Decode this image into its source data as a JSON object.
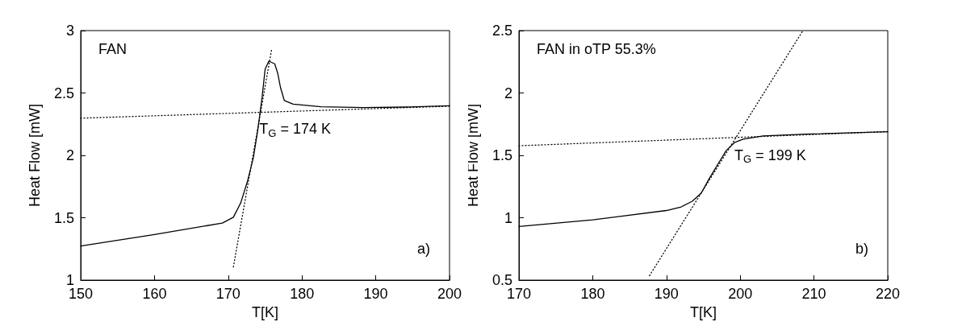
{
  "chart_data": [
    {
      "type": "line",
      "xlabel": "T[K]",
      "ylabel": "Heat Flow [mW]",
      "xlim": [
        150,
        200
      ],
      "xticks": [
        150,
        160,
        170,
        180,
        190,
        200
      ],
      "ylim": [
        1,
        3
      ],
      "yticks": [
        1,
        1.5,
        2,
        2.5,
        3
      ],
      "grid": false,
      "marker": "none",
      "annotations": [
        "FAN",
        "a)",
        {
          "text": "T$_{G}$ = 174 K",
          "x": 174,
          "y": 2.35
        }
      ],
      "series": [
        {
          "color": "#000000",
          "line_style": "solid",
          "x": [
            150,
            160,
            169.2,
            170.7,
            171.7,
            172.6,
            173.4,
            174.0,
            174.6,
            175.0,
            175.5,
            176.3,
            176.7,
            177.1,
            177.6,
            178.8,
            182.6,
            188.4,
            194.1,
            200
          ],
          "values": [
            1.274,
            1.366,
            1.457,
            1.504,
            1.62,
            1.79,
            1.98,
            2.2,
            2.47,
            2.69,
            2.755,
            2.734,
            2.66,
            2.54,
            2.44,
            2.41,
            2.39,
            2.383,
            2.387,
            2.398
          ]
        },
        {
          "color": "#000000",
          "line_style": "dotted",
          "x": [
            150,
            200
          ],
          "values": [
            2.298,
            2.394
          ]
        },
        {
          "color": "#000000",
          "line_style": "dotted",
          "x": [
            170.7,
            175.9
          ],
          "values": [
            1.106,
            2.855
          ]
        }
      ]
    },
    {
      "type": "line",
      "xlabel": "T[K]",
      "ylabel": "Heat Flow [mW]",
      "xlim": [
        170,
        220
      ],
      "xticks": [
        170,
        180,
        190,
        200,
        210,
        220
      ],
      "ylim": [
        0.5,
        2.5
      ],
      "yticks": [
        0.5,
        1,
        1.5,
        2,
        2.5
      ],
      "grid": false,
      "marker": "none",
      "annotations": [
        "FAN in oTP 55.3%",
        "b)",
        {
          "text": "T$_{G}$ = 199 K",
          "x": 199,
          "y": 1.64
        }
      ],
      "series": [
        {
          "color": "#000000",
          "line_style": "solid",
          "x": [
            170,
            180,
            190,
            192,
            193.5,
            194.7,
            195.8,
            197.0,
            198.1,
            199.2,
            200.4,
            203.1,
            208.9,
            220
          ],
          "values": [
            0.93,
            0.983,
            1.058,
            1.087,
            1.132,
            1.197,
            1.314,
            1.432,
            1.538,
            1.602,
            1.63,
            1.655,
            1.67,
            1.69
          ]
        },
        {
          "color": "#000000",
          "line_style": "dotted",
          "x": [
            170,
            220
          ],
          "values": [
            1.577,
            1.69
          ]
        },
        {
          "color": "#000000",
          "line_style": "dotted",
          "x": [
            187.7,
            208.5
          ],
          "values": [
            0.536,
            2.5
          ]
        }
      ]
    }
  ]
}
